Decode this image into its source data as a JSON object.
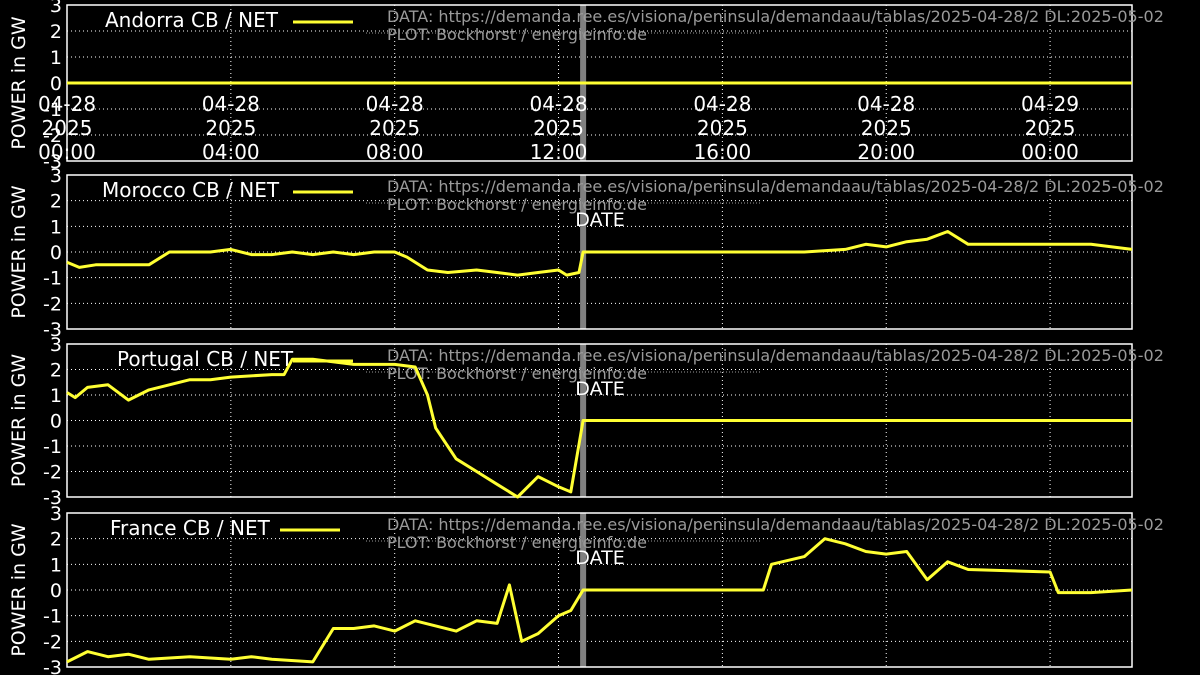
{
  "meta": {
    "source_text": "DATA: https://demanda.ree.es/visiona/peninsula/demandaau/tablas/2025-04-28/2 DL:2025-05-02",
    "plot_text": "PLOT: Bockhorst / energieinfo.de"
  },
  "colors": {
    "background": "#000000",
    "line": "#ffff33",
    "grid": "#ffffff",
    "marker": "#808080",
    "meta": "#9a9a9a"
  },
  "chart_data": [
    {
      "type": "line",
      "title": "Andorra CB / NET",
      "ylabel": "POWER in GW",
      "xlabel": "",
      "ylim": [
        -3,
        3
      ],
      "yticks": [
        -3,
        -2,
        -1,
        0,
        1,
        2,
        3
      ],
      "grid": true,
      "legend": "top-left",
      "x_ticks": [
        {
          "h": 0,
          "label": [
            "04-28",
            "2025",
            "00:00"
          ]
        },
        {
          "h": 4,
          "label": [
            "04-28",
            "2025",
            "04:00"
          ]
        },
        {
          "h": 8,
          "label": [
            "04-28",
            "2025",
            "08:00"
          ]
        },
        {
          "h": 12,
          "label": [
            "04-28",
            "2025",
            "12:00"
          ]
        },
        {
          "h": 16,
          "label": [
            "04-28",
            "2025",
            "16:00"
          ]
        },
        {
          "h": 20,
          "label": [
            "04-28",
            "2025",
            "20:00"
          ]
        },
        {
          "h": 24,
          "label": [
            "04-29",
            "2025",
            "00:00"
          ]
        }
      ],
      "x_range_hours": [
        0,
        26
      ],
      "marker_hour": 12.6,
      "series": [
        {
          "name": "Andorra CB / NET",
          "x": [
            0,
            26
          ],
          "y": [
            0,
            0
          ]
        }
      ]
    },
    {
      "type": "line",
      "title": "Morocco CB / NET",
      "ylabel": "POWER in GW",
      "xlabel": "DATE",
      "ylim": [
        -3,
        3
      ],
      "yticks": [
        -3,
        -2,
        -1,
        0,
        1,
        2,
        3
      ],
      "grid": true,
      "legend": "top-left",
      "x_range_hours": [
        0,
        26
      ],
      "marker_hour": 12.6,
      "series": [
        {
          "name": "Morocco CB / NET",
          "x": [
            0,
            0.3,
            0.7,
            1,
            1.5,
            2,
            2.5,
            3,
            3.5,
            4,
            4.5,
            5,
            5.5,
            6,
            6.5,
            7,
            7.5,
            8,
            8.3,
            8.8,
            9.3,
            10,
            10.5,
            11,
            11.5,
            12,
            12.2,
            12.5,
            12.6,
            18,
            19,
            19.5,
            20,
            20.5,
            21,
            21.5,
            22,
            24,
            25,
            26
          ],
          "y": [
            -0.4,
            -0.6,
            -0.5,
            -0.5,
            -0.5,
            -0.5,
            0,
            0,
            0,
            0.1,
            -0.1,
            -0.1,
            0,
            -0.1,
            0,
            -0.1,
            0,
            0,
            -0.2,
            -0.7,
            -0.8,
            -0.7,
            -0.8,
            -0.9,
            -0.8,
            -0.7,
            -0.9,
            -0.8,
            0,
            0,
            0.1,
            0.3,
            0.2,
            0.4,
            0.5,
            0.8,
            0.3,
            0.3,
            0.3,
            0.1
          ]
        }
      ]
    },
    {
      "type": "line",
      "title": "Portugal CB / NET",
      "ylabel": "POWER in GW",
      "xlabel": "DATE",
      "ylim": [
        -3,
        3
      ],
      "yticks": [
        -3,
        -2,
        -1,
        0,
        1,
        2,
        3
      ],
      "grid": true,
      "legend": "top-left",
      "x_range_hours": [
        0,
        26
      ],
      "marker_hour": 12.6,
      "series": [
        {
          "name": "Portugal CB / NET",
          "x": [
            0,
            0.2,
            0.5,
            1,
            1.5,
            2,
            2.5,
            3,
            3.5,
            4,
            5,
            5.3,
            5.5,
            6,
            7,
            8,
            8.5,
            8.8,
            9,
            9.5,
            10,
            10.5,
            11,
            11.5,
            12,
            12.3,
            12.6,
            18,
            20,
            22,
            24,
            26
          ],
          "y": [
            1.1,
            0.9,
            1.3,
            1.4,
            0.8,
            1.2,
            1.4,
            1.6,
            1.6,
            1.7,
            1.8,
            1.8,
            2.4,
            2.4,
            2.2,
            2.2,
            2.1,
            1.0,
            -0.3,
            -1.5,
            -2.0,
            -2.5,
            -3.0,
            -2.2,
            -2.6,
            -2.8,
            0,
            0,
            0,
            0,
            0,
            0
          ]
        }
      ]
    },
    {
      "type": "line",
      "title": "France CB / NET",
      "ylabel": "POWER in GW",
      "xlabel": "DATE",
      "ylim": [
        -3,
        3
      ],
      "yticks": [
        -3,
        -2,
        -1,
        0,
        1,
        2,
        3
      ],
      "grid": true,
      "legend": "top-left",
      "x_range_hours": [
        0,
        26
      ],
      "marker_hour": 12.6,
      "series": [
        {
          "name": "France CB / NET",
          "x": [
            0,
            0.5,
            1,
            1.5,
            2,
            3,
            4,
            4.5,
            5,
            6,
            6.5,
            7,
            7.5,
            8,
            8.5,
            9,
            9.5,
            10,
            10.5,
            10.8,
            11.1,
            11.5,
            12,
            12.3,
            12.6,
            17,
            17.2,
            18,
            18.5,
            19,
            19.5,
            20,
            20.5,
            21,
            21.5,
            22,
            24,
            24.2,
            25,
            26
          ],
          "y": [
            -2.8,
            -2.4,
            -2.6,
            -2.5,
            -2.7,
            -2.6,
            -2.7,
            -2.6,
            -2.7,
            -2.8,
            -1.5,
            -1.5,
            -1.4,
            -1.6,
            -1.2,
            -1.4,
            -1.6,
            -1.2,
            -1.3,
            0.2,
            -2.0,
            -1.7,
            -1.0,
            -0.8,
            0,
            0,
            1.0,
            1.3,
            2.0,
            1.8,
            1.5,
            1.4,
            1.5,
            0.4,
            1.1,
            0.8,
            0.7,
            -0.1,
            -0.1,
            0.0
          ]
        }
      ]
    }
  ]
}
